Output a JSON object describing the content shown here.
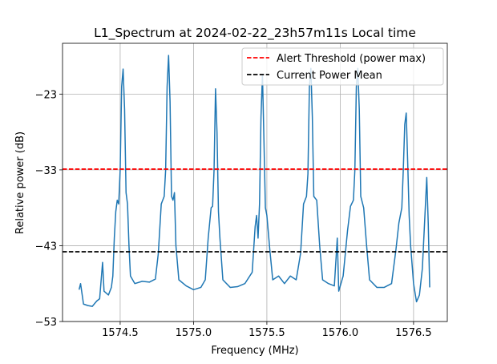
{
  "chart_data": {
    "type": "line",
    "title": "L1_Spectrum at 2024-02-22_23h57m11s Local time",
    "xlabel": "Frequency (MHz)",
    "ylabel": "Relative power (dB)",
    "x": [
      1574.22,
      1574.23,
      1574.25,
      1574.28,
      1574.31,
      1574.34,
      1574.36,
      1574.38,
      1574.39,
      1574.42,
      1574.44,
      1574.45,
      1574.46,
      1574.47,
      1574.48,
      1574.49,
      1574.5,
      1574.51,
      1574.52,
      1574.53,
      1574.54,
      1574.55,
      1574.56,
      1574.57,
      1574.6,
      1574.65,
      1574.7,
      1574.74,
      1574.76,
      1574.78,
      1574.8,
      1574.81,
      1574.82,
      1574.83,
      1574.84,
      1574.85,
      1574.86,
      1574.87,
      1574.88,
      1574.9,
      1574.95,
      1575.0,
      1575.05,
      1575.08,
      1575.1,
      1575.12,
      1575.13,
      1575.14,
      1575.15,
      1575.16,
      1575.17,
      1575.18,
      1575.2,
      1575.25,
      1575.3,
      1575.35,
      1575.4,
      1575.42,
      1575.43,
      1575.44,
      1575.45,
      1575.46,
      1575.47,
      1575.48,
      1575.49,
      1575.5,
      1575.52,
      1575.54,
      1575.58,
      1575.62,
      1575.66,
      1575.7,
      1575.73,
      1575.75,
      1575.77,
      1575.78,
      1575.79,
      1575.8,
      1575.81,
      1575.82,
      1575.84,
      1575.86,
      1575.88,
      1575.92,
      1575.96,
      1575.98,
      1575.99,
      1576.02,
      1576.05,
      1576.07,
      1576.09,
      1576.1,
      1576.11,
      1576.12,
      1576.13,
      1576.14,
      1576.16,
      1576.18,
      1576.2,
      1576.25,
      1576.3,
      1576.35,
      1576.38,
      1576.4,
      1576.42,
      1576.43,
      1576.44,
      1576.45,
      1576.46,
      1576.47,
      1576.48,
      1576.5,
      1576.52,
      1576.54,
      1576.56,
      1576.58,
      1576.59,
      1576.6,
      1576.61
    ],
    "series": [
      {
        "color": "#1f77b4",
        "values": [
          -48.8,
          -48.0,
          -50.7,
          -50.9,
          -51.0,
          -50.3,
          -50.0,
          -45.2,
          -49.0,
          -49.5,
          -48.5,
          -47.0,
          -42.0,
          -38.5,
          -37.0,
          -37.5,
          -33.0,
          -22.0,
          -19.7,
          -25.0,
          -36.0,
          -37.5,
          -43.0,
          -47.0,
          -48.0,
          -47.7,
          -47.8,
          -47.4,
          -44.0,
          -37.5,
          -36.5,
          -33.0,
          -22.0,
          -17.9,
          -24.0,
          -36.5,
          -37.0,
          -36.0,
          -43.0,
          -47.5,
          -48.3,
          -48.8,
          -48.5,
          -47.5,
          -42.0,
          -38.0,
          -37.8,
          -33.0,
          -22.3,
          -28.0,
          -38.5,
          -42.0,
          -47.5,
          -48.5,
          -48.4,
          -48.0,
          -46.5,
          -40.5,
          -39.0,
          -42.0,
          -37.5,
          -26.0,
          -20.4,
          -29.0,
          -38.0,
          -39.0,
          -43.5,
          -47.5,
          -47.0,
          -48.0,
          -47.0,
          -47.5,
          -44.0,
          -37.5,
          -36.5,
          -33.5,
          -22.0,
          -19.6,
          -26.0,
          -36.5,
          -37.0,
          -43.0,
          -47.5,
          -48.0,
          -48.3,
          -42.0,
          -49.0,
          -47.0,
          -41.0,
          -37.8,
          -37.0,
          -33.0,
          -22.0,
          -19.6,
          -25.0,
          -36.5,
          -38.0,
          -43.0,
          -47.5,
          -48.5,
          -48.5,
          -48.0,
          -43.5,
          -40.0,
          -38.0,
          -33.0,
          -27.0,
          -25.5,
          -32.0,
          -39.0,
          -43.0,
          -48.0,
          -50.4,
          -49.5,
          -46.0,
          -38.0,
          -34.0,
          -40.0,
          -48.5
        ]
      }
    ],
    "hlines": [
      {
        "name": "Alert Threshold (power max)",
        "color": "#ff0000",
        "value": -32.9
      },
      {
        "name": "Current Power Mean",
        "color": "#000000",
        "value": -43.8
      }
    ],
    "xlim": [
      1574.107,
      1576.73
    ],
    "ylim": [
      -53,
      -16.3
    ],
    "xticks": [
      1574.5,
      {
        "value": 1575.0,
        "label": "1575.0"
      },
      1575.5,
      {
        "value": 1576.0,
        "label": "1576.0"
      },
      1576.5
    ],
    "yticks": [
      {
        "value": -23,
        "label": "−23"
      },
      {
        "value": -33,
        "label": "−33"
      },
      {
        "value": -43,
        "label": "−43"
      },
      {
        "value": -53,
        "label": "−53"
      }
    ],
    "grid": true,
    "legend": "upper right"
  }
}
